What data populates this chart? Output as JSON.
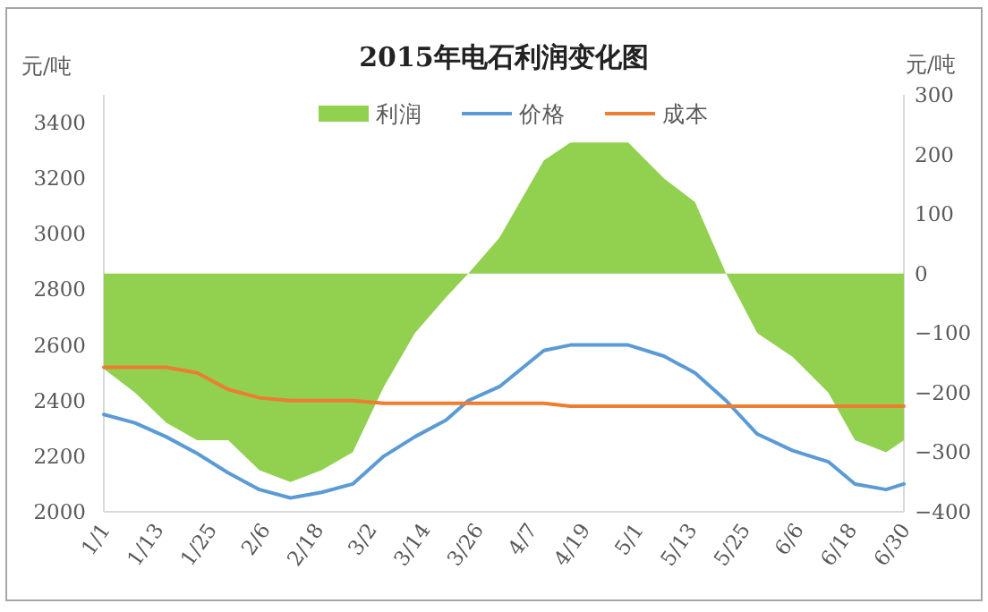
{
  "chart_data": {
    "type": "line",
    "title": "2015年电石利润变化图",
    "ylabel": "元/吨",
    "y2label": "元/吨",
    "x": [
      "2015-01-01",
      "2015-01-08",
      "2015-01-15",
      "2015-01-22",
      "2015-01-29",
      "2015-02-05",
      "2015-02-12",
      "2015-02-19",
      "2015-02-26",
      "2015-03-05",
      "2015-03-12",
      "2015-03-19",
      "2015-03-24",
      "2015-03-31",
      "2015-04-10",
      "2015-04-16",
      "2015-04-29",
      "2015-05-07",
      "2015-05-14",
      "2015-05-21",
      "2015-05-28",
      "2015-06-05",
      "2015-06-13",
      "2015-06-19",
      "2015-06-26",
      "2015-06-30"
    ],
    "series": [
      {
        "name": "利润",
        "type": "area",
        "axis": "y2",
        "color": "#92d050",
        "values": [
          -160,
          -200,
          -250,
          -280,
          -280,
          -330,
          -350,
          -330,
          -300,
          -190,
          -100,
          -40,
          0,
          60,
          190,
          220,
          220,
          160,
          120,
          0,
          -100,
          -140,
          -200,
          -280,
          -300,
          -280
        ]
      },
      {
        "name": "价格",
        "color": "#5b9bd5",
        "values": [
          2350,
          2320,
          2270,
          2210,
          2140,
          2080,
          2050,
          2070,
          2100,
          2200,
          2270,
          2330,
          2400,
          2450,
          2580,
          2600,
          2600,
          2560,
          2500,
          2400,
          2280,
          2220,
          2180,
          2100,
          2080,
          2100
        ]
      },
      {
        "name": "成本",
        "color": "#ed7d31",
        "values": [
          2520,
          2520,
          2520,
          2500,
          2440,
          2410,
          2400,
          2400,
          2400,
          2390,
          2390,
          2390,
          2390,
          2390,
          2390,
          2380,
          2380,
          2380,
          2380,
          2380,
          2380,
          2380,
          2380,
          2380,
          2380,
          2380
        ]
      }
    ],
    "xlim": [
      "2015-01-01",
      "2015-06-30"
    ],
    "xticks": [
      {
        "value": "2015-01-01",
        "label": "1/1"
      },
      {
        "value": "2015-01-13",
        "label": "1/13"
      },
      {
        "value": "2015-01-25",
        "label": "1/25"
      },
      {
        "value": "2015-02-06",
        "label": "2/6"
      },
      {
        "value": "2015-02-18",
        "label": "2/18"
      },
      {
        "value": "2015-03-02",
        "label": "3/2"
      },
      {
        "value": "2015-03-14",
        "label": "3/14"
      },
      {
        "value": "2015-03-26",
        "label": "3/26"
      },
      {
        "value": "2015-04-07",
        "label": "4/7"
      },
      {
        "value": "2015-04-19",
        "label": "4/19"
      },
      {
        "value": "2015-05-01",
        "label": "5/1"
      },
      {
        "value": "2015-05-13",
        "label": "5/13"
      },
      {
        "value": "2015-05-25",
        "label": "5/25"
      },
      {
        "value": "2015-06-06",
        "label": "6/6"
      },
      {
        "value": "2015-06-18",
        "label": "6/18"
      },
      {
        "value": "2015-06-30",
        "label": "6/30"
      }
    ],
    "ylim": [
      2000,
      3500
    ],
    "yticks": [
      2000,
      2200,
      2400,
      2600,
      2800,
      3000,
      3200,
      3400
    ],
    "y2lim": [
      -400,
      300
    ],
    "y2ticks": [
      -400,
      -300,
      -200,
      -100,
      0,
      100,
      200,
      300
    ],
    "legend": "top"
  }
}
